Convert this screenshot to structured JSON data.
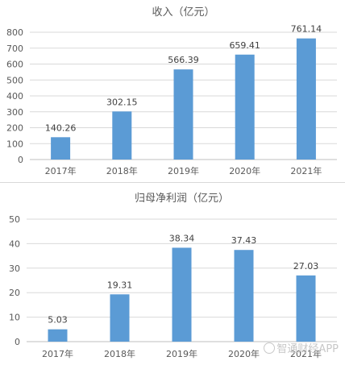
{
  "watermark": "智通财经APP",
  "chart_data": [
    {
      "type": "bar",
      "title": "收入（亿元）",
      "categories": [
        "2017年",
        "2018年",
        "2019年",
        "2020年",
        "2021年"
      ],
      "values": [
        140.26,
        302.15,
        566.39,
        659.41,
        761.14
      ],
      "value_labels": [
        "140.26",
        "302.15",
        "566.39",
        "659.41",
        "761.14"
      ],
      "ylim": [
        0,
        800
      ],
      "yticks": [
        0,
        100,
        200,
        300,
        400,
        500,
        600,
        700,
        800
      ],
      "grid": true,
      "color": "#5b9bd5"
    },
    {
      "type": "bar",
      "title": "归母净利润（亿元）",
      "categories": [
        "2017年",
        "2018年",
        "2019年",
        "2020年",
        "2021年"
      ],
      "values": [
        5.03,
        19.31,
        38.34,
        37.43,
        27.03
      ],
      "value_labels": [
        "5.03",
        "19.31",
        "38.34",
        "37.43",
        "27.03"
      ],
      "ylim": [
        0,
        50
      ],
      "yticks": [
        0,
        10,
        20,
        30,
        40,
        50
      ],
      "grid": true,
      "color": "#5b9bd5"
    }
  ]
}
